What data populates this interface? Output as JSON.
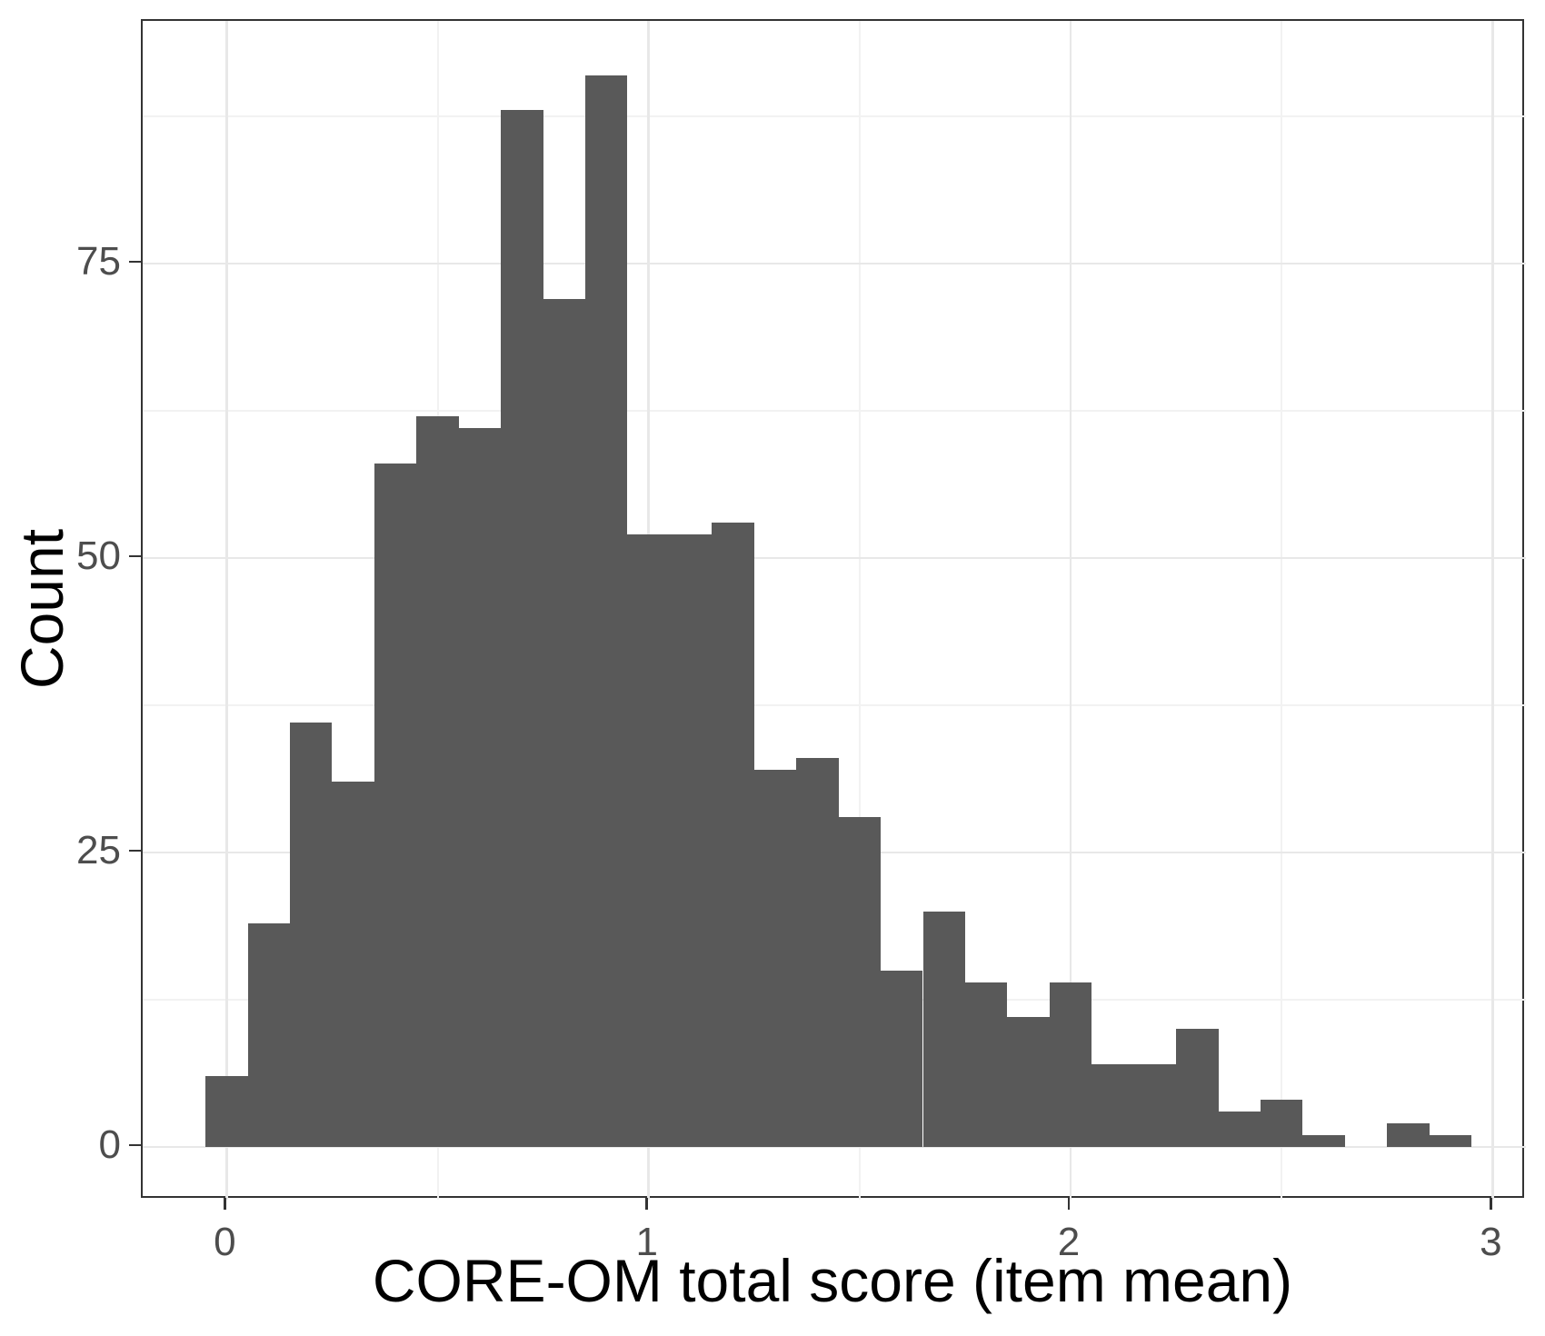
{
  "chart_data": {
    "type": "bar",
    "subtype": "histogram",
    "title": "",
    "xlabel": "CORE-OM total score (item mean)",
    "ylabel": "Count",
    "bin_width": 0.1,
    "bin_centers": [
      0.0,
      0.1,
      0.2,
      0.3,
      0.4,
      0.5,
      0.6,
      0.7,
      0.8,
      0.9,
      1.0,
      1.1,
      1.2,
      1.3,
      1.4,
      1.5,
      1.6,
      1.7,
      1.8,
      1.9,
      2.0,
      2.1,
      2.2,
      2.3,
      2.4,
      2.5,
      2.6,
      2.7,
      2.8,
      2.9
    ],
    "counts": [
      6,
      19,
      36,
      31,
      58,
      62,
      61,
      88,
      72,
      91,
      52,
      52,
      53,
      32,
      33,
      28,
      15,
      20,
      14,
      11,
      14,
      7,
      7,
      10,
      3,
      4,
      1,
      0,
      2,
      1
    ],
    "x_tick_values": [
      0,
      1,
      2,
      3
    ],
    "x_tick_labels": [
      "0",
      "1",
      "2",
      "3"
    ],
    "y_tick_values": [
      0,
      25,
      50,
      75
    ],
    "y_tick_labels": [
      "0",
      "25",
      "50",
      "75"
    ],
    "x_minor_values": [
      0.5,
      1.5,
      2.5
    ],
    "y_minor_values": [
      12.5,
      37.5,
      62.5,
      87.5
    ],
    "xlim": [
      -0.199,
      3.079
    ],
    "ylim": [
      -4.48,
      95.6
    ],
    "grid": true,
    "legend": false,
    "colors": {
      "bar_fill": "#595959",
      "panel_border": "#333333",
      "grid_major": "#e8e8e8",
      "grid_minor": "#f2f2f2",
      "tick_mark": "#333333",
      "tick_label": "#4d4d4d",
      "axis_title": "#000000",
      "background": "#ffffff"
    }
  }
}
